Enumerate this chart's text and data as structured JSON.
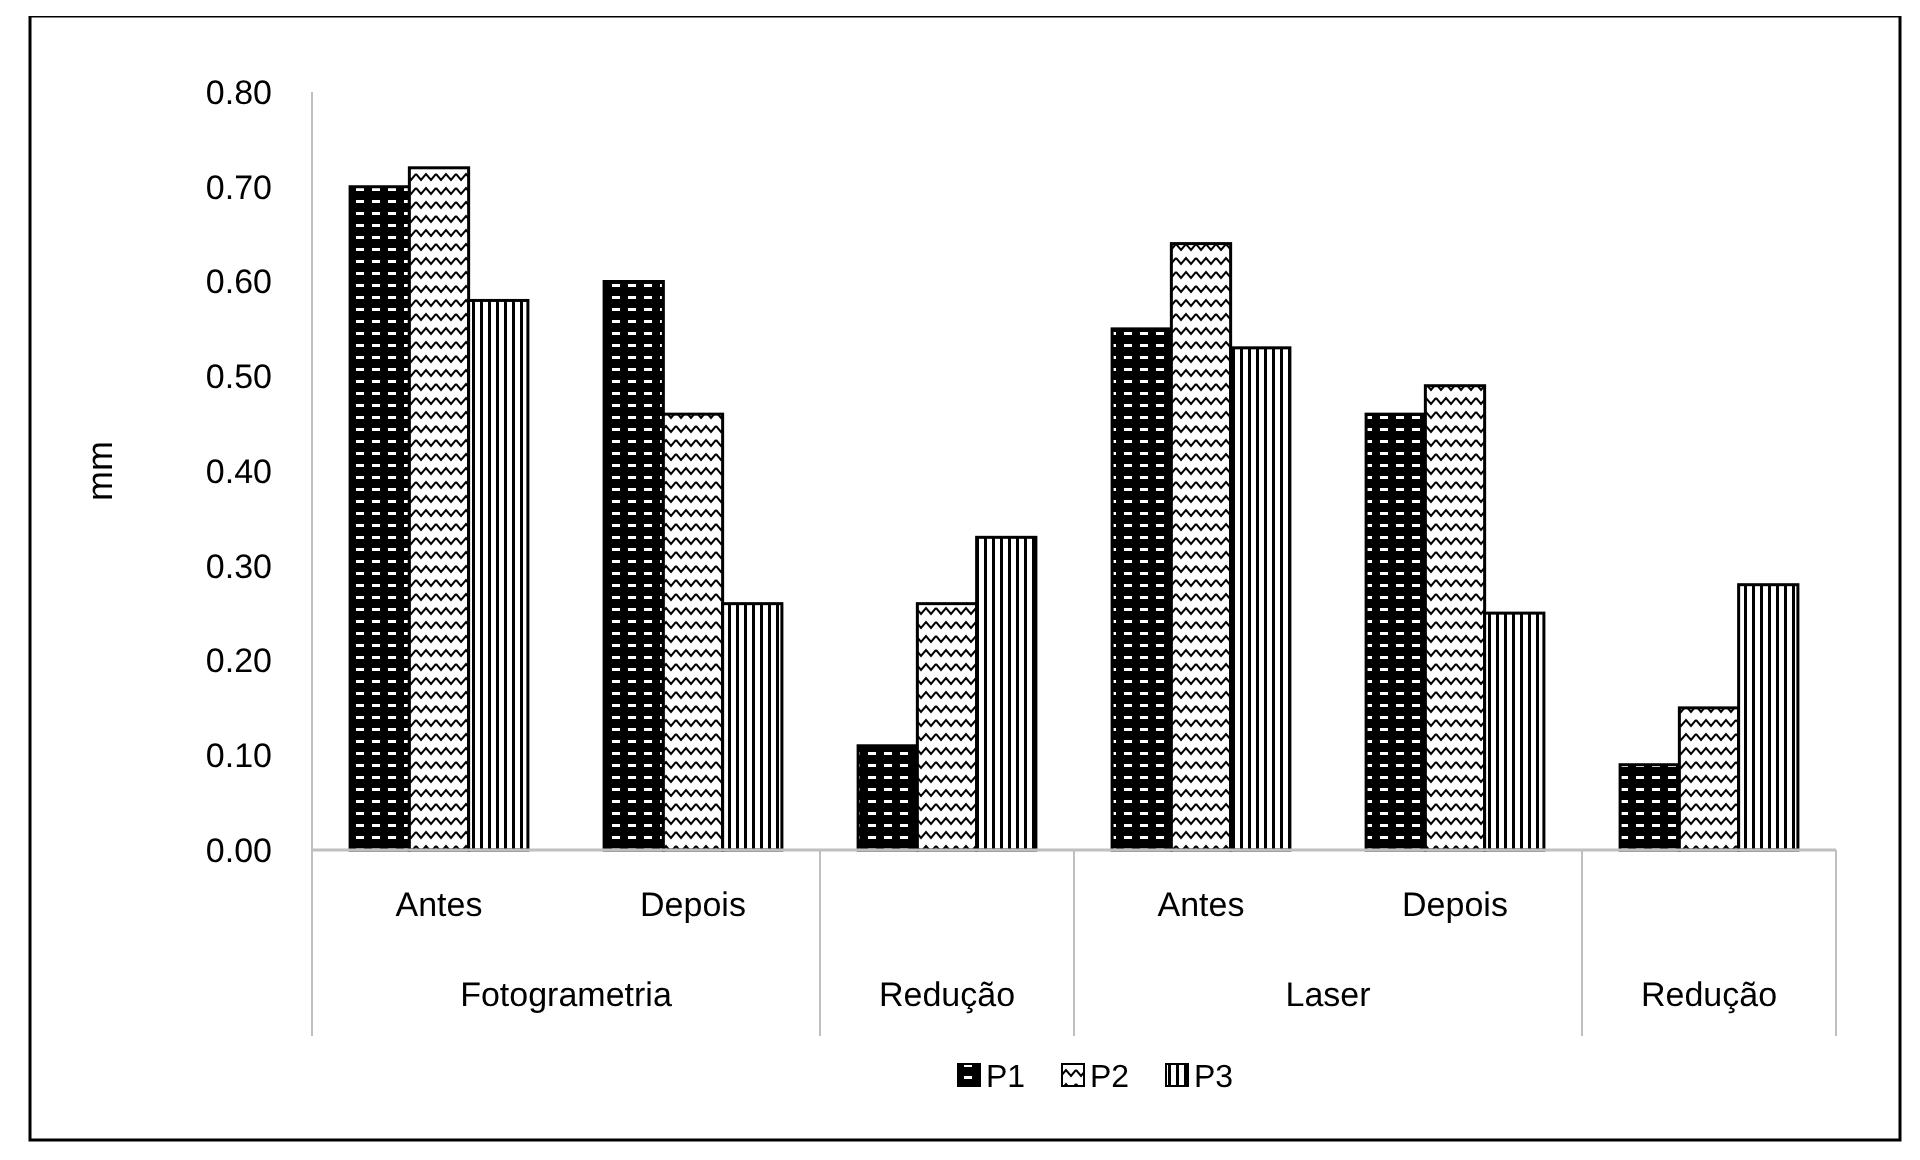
{
  "chart_data": {
    "type": "bar",
    "ylabel": "mm",
    "categories": [
      "Antes",
      "Depois",
      null,
      "Antes",
      "Depois",
      null
    ],
    "annotations": [
      "Fotogrametria",
      "Redução",
      "Laser",
      "Redução"
    ],
    "series": [
      {
        "name": "P1",
        "color": "#000000",
        "values": [
          0.7,
          0.6,
          0.11,
          0.55,
          0.46,
          0.09
        ]
      },
      {
        "name": "P2",
        "color": "#000000",
        "values": [
          0.72,
          0.46,
          0.26,
          0.64,
          0.49,
          0.15
        ]
      },
      {
        "name": "P3",
        "color": "#000000",
        "values": [
          0.58,
          0.26,
          0.33,
          0.53,
          0.25,
          0.28
        ]
      }
    ],
    "ylim": [
      0,
      0.8
    ],
    "yticks": [
      {
        "value": 0,
        "label": "0.00"
      },
      {
        "value": 0.1,
        "label": "0.10"
      },
      {
        "value": 0.2,
        "label": "0.20"
      },
      {
        "value": 0.3,
        "label": "0.30"
      },
      {
        "value": 0.4,
        "label": "0.40"
      },
      {
        "value": 0.5,
        "label": "0.50"
      },
      {
        "value": 0.6,
        "label": "0.60"
      },
      {
        "value": 0.7,
        "label": "0.70"
      },
      {
        "value": 0.8,
        "label": "0.80"
      }
    ],
    "grid": false,
    "legend": "bottom"
  }
}
